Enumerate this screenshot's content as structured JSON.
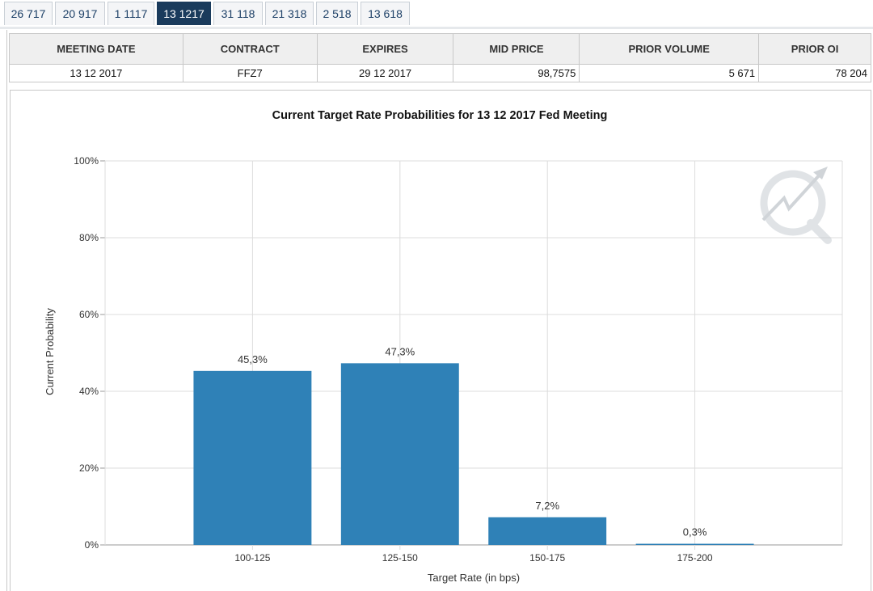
{
  "tabs": [
    {
      "label": "26 717",
      "active": false
    },
    {
      "label": "20 917",
      "active": false
    },
    {
      "label": "1 1117",
      "active": false
    },
    {
      "label": "13 1217",
      "active": true
    },
    {
      "label": "31 118",
      "active": false
    },
    {
      "label": "21 318",
      "active": false
    },
    {
      "label": "2 518",
      "active": false
    },
    {
      "label": "13 618",
      "active": false
    }
  ],
  "table": {
    "headers": [
      "MEETING DATE",
      "CONTRACT",
      "EXPIRES",
      "MID PRICE",
      "PRIOR VOLUME",
      "PRIOR OI"
    ],
    "row": [
      "13 12 2017",
      "FFZ7",
      "29 12 2017",
      "98,7575",
      "5 671",
      "78 204"
    ]
  },
  "colors": {
    "bar": "#2f81b7",
    "tab_active_bg": "#1a3b5c"
  },
  "watermark_icon": "quikstrike-q-icon",
  "chart_data": {
    "type": "bar",
    "title": "Current Target Rate Probabilities for 13 12 2017 Fed Meeting",
    "xlabel": "Target Rate (in bps)",
    "ylabel": "Current Probability",
    "categories": [
      "100-125",
      "125-150",
      "150-175",
      "175-200"
    ],
    "values": [
      45.3,
      47.3,
      7.2,
      0.3
    ],
    "data_labels": [
      "45,3%",
      "47,3%",
      "7,2%",
      "0,3%"
    ],
    "ylim": [
      0,
      100
    ],
    "yticks": [
      0,
      20,
      40,
      60,
      80,
      100
    ],
    "ytick_labels": [
      "0%",
      "20%",
      "40%",
      "60%",
      "80%",
      "100%"
    ],
    "grid": true,
    "legend": "none"
  }
}
